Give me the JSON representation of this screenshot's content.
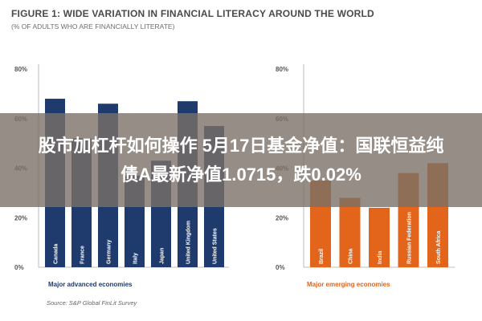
{
  "header": {
    "title": "FIGURE 1: WIDE VARIATION IN FINANCIAL LITERACY AROUND THE WORLD",
    "subtitle": "(% OF ADULTS WHO ARE FINANCIALLY LITERATE)"
  },
  "overlay": {
    "line1": "股市加杠杆如何操作 5月17日基金净值：国联恒益纯",
    "line2": "债A最新净值1.0715，跌0.02%"
  },
  "source": "Source: S&P Global FinLit Survey",
  "colors": {
    "advanced": "#1f3b6e",
    "emerging": "#e2651b",
    "axis": "#aaaaaa",
    "tick": "#555555"
  },
  "chart_data": [
    {
      "type": "bar",
      "group_label": "Major advanced economies",
      "categories": [
        "Canada",
        "France",
        "Germany",
        "Italy",
        "Japan",
        "United Kingdom",
        "United States"
      ],
      "values": [
        68,
        52,
        66,
        37,
        43,
        67,
        57
      ],
      "ylim": [
        0,
        80
      ],
      "yticks": [
        "0%",
        "20%",
        "40%",
        "60%",
        "80%"
      ]
    },
    {
      "type": "bar",
      "group_label": "Major emerging economies",
      "categories": [
        "Brazil",
        "China",
        "India",
        "Russian Federation",
        "South Africa"
      ],
      "values": [
        35,
        28,
        24,
        38,
        42
      ],
      "ylim": [
        0,
        80
      ],
      "yticks": [
        "0%",
        "20%",
        "40%",
        "60%",
        "80%"
      ]
    }
  ]
}
